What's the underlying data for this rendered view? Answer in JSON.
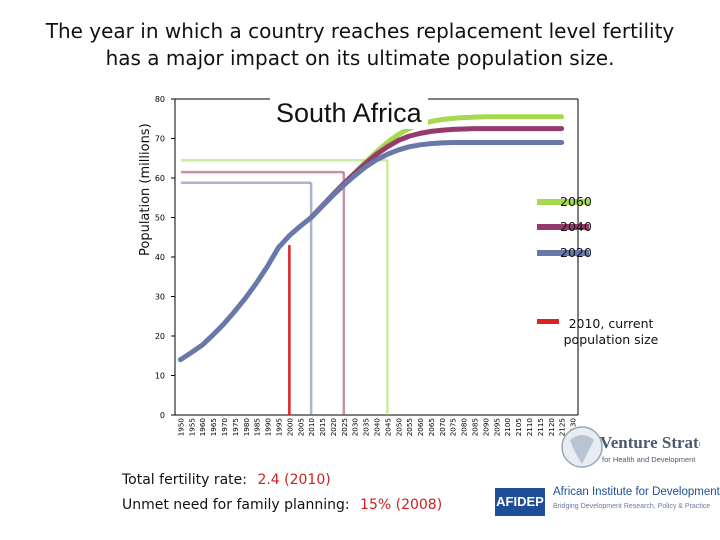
{
  "slide_title_line1": "The year in which a country reaches replacement level fertility",
  "slide_title_line2": "has a major impact on its ultimate population size.",
  "stats": {
    "tfr_label": "Total fertility rate:",
    "tfr_value": "2.4",
    "tfr_year": "(2010)",
    "unmet_label": "Unmet need for family planning:",
    "unmet_value": "15%",
    "unmet_year": "(2008)"
  },
  "logos": {
    "venture_line1": "Venture Strategies",
    "venture_line2": "for Health and Development",
    "afidep_abbr": "AFIDEP",
    "afidep_name": "African Institute for Development Policy",
    "afidep_tagline": "Bridging Development Research, Policy & Practice"
  },
  "colors": {
    "s2060": "#a6d94f",
    "s2040": "#953a6a",
    "s2020": "#6878a8",
    "s2010": "#dd2222",
    "axis": "#000000"
  },
  "chart_data": {
    "type": "line",
    "title": "South Africa",
    "ylabel": "Population (millions)",
    "xlabel": "",
    "ylim": [
      0,
      80
    ],
    "y_ticks": [
      0,
      10,
      20,
      30,
      40,
      50,
      60,
      70,
      80
    ],
    "x_categories": [
      "1950",
      "1955",
      "1960",
      "1965",
      "1970",
      "1975",
      "1980",
      "1985",
      "1990",
      "1995",
      "2000",
      "2005",
      "2010",
      "2015",
      "2020",
      "2025",
      "2030",
      "2035",
      "2040",
      "2045",
      "2050",
      "2055",
      "2060",
      "2065",
      "2070",
      "2075",
      "2080",
      "2085",
      "2090",
      "2095",
      "2100",
      "2105",
      "2110",
      "2115",
      "2120",
      "2125",
      "2130"
    ],
    "historical": {
      "years": [
        1950,
        1955,
        1960,
        1965,
        1970,
        1975,
        1980,
        1985,
        1990,
        1995,
        2000,
        2005,
        2010
      ],
      "values": [
        14,
        15.8,
        17.7,
        20.3,
        23.1,
        26.3,
        29.7,
        33.5,
        37.7,
        42.4,
        45.4,
        47.8,
        50.0
      ]
    },
    "series": [
      {
        "name": "2060",
        "replacement_year": 2060,
        "ultimate": 75.5,
        "years": [
          2010,
          2015,
          2020,
          2025,
          2030,
          2035,
          2040,
          2045,
          2050,
          2055,
          2060,
          2065,
          2070,
          2075,
          2080,
          2085,
          2090,
          2095,
          2100,
          2105,
          2110,
          2115,
          2120,
          2125
        ],
        "values": [
          50.0,
          52.9,
          55.8,
          58.6,
          61.3,
          64.0,
          66.6,
          69.0,
          71.0,
          72.5,
          73.6,
          74.3,
          74.8,
          75.1,
          75.3,
          75.4,
          75.5,
          75.5,
          75.5,
          75.5,
          75.5,
          75.5,
          75.5,
          75.5
        ]
      },
      {
        "name": "2040",
        "replacement_year": 2040,
        "ultimate": 72.5,
        "years": [
          2010,
          2015,
          2020,
          2025,
          2030,
          2035,
          2040,
          2045,
          2050,
          2055,
          2060,
          2065,
          2070,
          2075,
          2080,
          2085,
          2090,
          2095,
          2100,
          2105,
          2110,
          2115,
          2120,
          2125
        ],
        "values": [
          50.0,
          52.9,
          55.8,
          58.6,
          61.2,
          63.7,
          66.0,
          67.9,
          69.5,
          70.6,
          71.3,
          71.8,
          72.1,
          72.3,
          72.4,
          72.5,
          72.5,
          72.5,
          72.5,
          72.5,
          72.5,
          72.5,
          72.5,
          72.5
        ]
      },
      {
        "name": "2020",
        "replacement_year": 2020,
        "ultimate": 69.0,
        "years": [
          2010,
          2015,
          2020,
          2025,
          2030,
          2035,
          2040,
          2045,
          2050,
          2055,
          2060,
          2065,
          2070,
          2075,
          2080,
          2085,
          2090,
          2095,
          2100,
          2105,
          2110,
          2115,
          2120,
          2125
        ],
        "values": [
          50.0,
          52.8,
          55.6,
          58.2,
          60.6,
          62.8,
          64.6,
          66.0,
          67.1,
          67.9,
          68.4,
          68.7,
          68.9,
          69.0,
          69.0,
          69.0,
          69.0,
          69.0,
          69.0,
          69.0,
          69.0,
          69.0,
          69.0,
          69.0
        ]
      },
      {
        "name": "2010, current population size",
        "replacement_year": 2010,
        "ultimate": 50.0,
        "years": [],
        "values": []
      }
    ],
    "marker_lines": [
      {
        "series": "2060",
        "year": 2045,
        "value": 64.5
      },
      {
        "series": "2040",
        "year": 2025,
        "value": 61.5
      },
      {
        "series": "2020",
        "year": 2010,
        "value": 58.8
      },
      {
        "series": "2010, current population size",
        "year": 2000,
        "value": 43.0
      }
    ],
    "legend": [
      {
        "label": "2060",
        "color_key": "s2060"
      },
      {
        "label": "2040",
        "color_key": "s2040"
      },
      {
        "label": "2020",
        "color_key": "s2020"
      },
      {
        "label": "2010, current population size",
        "color_key": "s2010"
      }
    ],
    "legend_position": "right",
    "grid": false
  }
}
